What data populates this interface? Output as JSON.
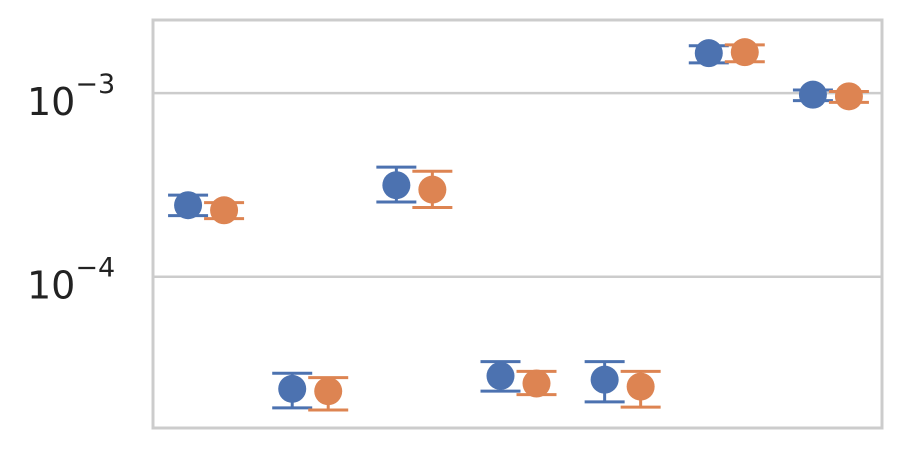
{
  "chart_data": {
    "type": "scatter",
    "title": "",
    "xlabel": "",
    "ylabel": "",
    "y_scale": "log",
    "ylim": [
      1.5e-05,
      0.0025
    ],
    "grid": "horizontal",
    "legend": "none",
    "y_ticks": [
      {
        "value": 0.0001,
        "base": "10",
        "exponent": "−4"
      },
      {
        "value": 0.001,
        "base": "10",
        "exponent": "−3"
      }
    ],
    "groups": 7,
    "series": [
      {
        "color": "#4c72b0",
        "points": [
          {
            "group": 1,
            "y": 0.000245,
            "low": 0.000215,
            "high": 0.000278
          },
          {
            "group": 2,
            "y": 2.45e-05,
            "low": 1.93e-05,
            "high": 2.98e-05
          },
          {
            "group": 3,
            "y": 0.000315,
            "low": 0.000255,
            "high": 0.000395
          },
          {
            "group": 4,
            "y": 2.88e-05,
            "low": 2.38e-05,
            "high": 3.45e-05
          },
          {
            "group": 5,
            "y": 2.75e-05,
            "low": 2.08e-05,
            "high": 3.45e-05
          },
          {
            "group": 6,
            "y": 0.00165,
            "low": 0.00146,
            "high": 0.00181
          },
          {
            "group": 7,
            "y": 0.00098,
            "low": 0.00091,
            "high": 0.00104
          }
        ]
      },
      {
        "color": "#dd8452",
        "points": [
          {
            "group": 1,
            "y": 0.00023,
            "low": 0.000207,
            "high": 0.000253
          },
          {
            "group": 2,
            "y": 2.38e-05,
            "low": 1.88e-05,
            "high": 2.82e-05
          },
          {
            "group": 3,
            "y": 0.000298,
            "low": 0.000238,
            "high": 0.000375
          },
          {
            "group": 4,
            "y": 2.62e-05,
            "low": 2.28e-05,
            "high": 3.05e-05
          },
          {
            "group": 5,
            "y": 2.52e-05,
            "low": 1.95e-05,
            "high": 3.05e-05
          },
          {
            "group": 6,
            "y": 0.00167,
            "low": 0.00148,
            "high": 0.00183
          },
          {
            "group": 7,
            "y": 0.00096,
            "low": 0.00089,
            "high": 0.00102
          }
        ]
      }
    ]
  }
}
